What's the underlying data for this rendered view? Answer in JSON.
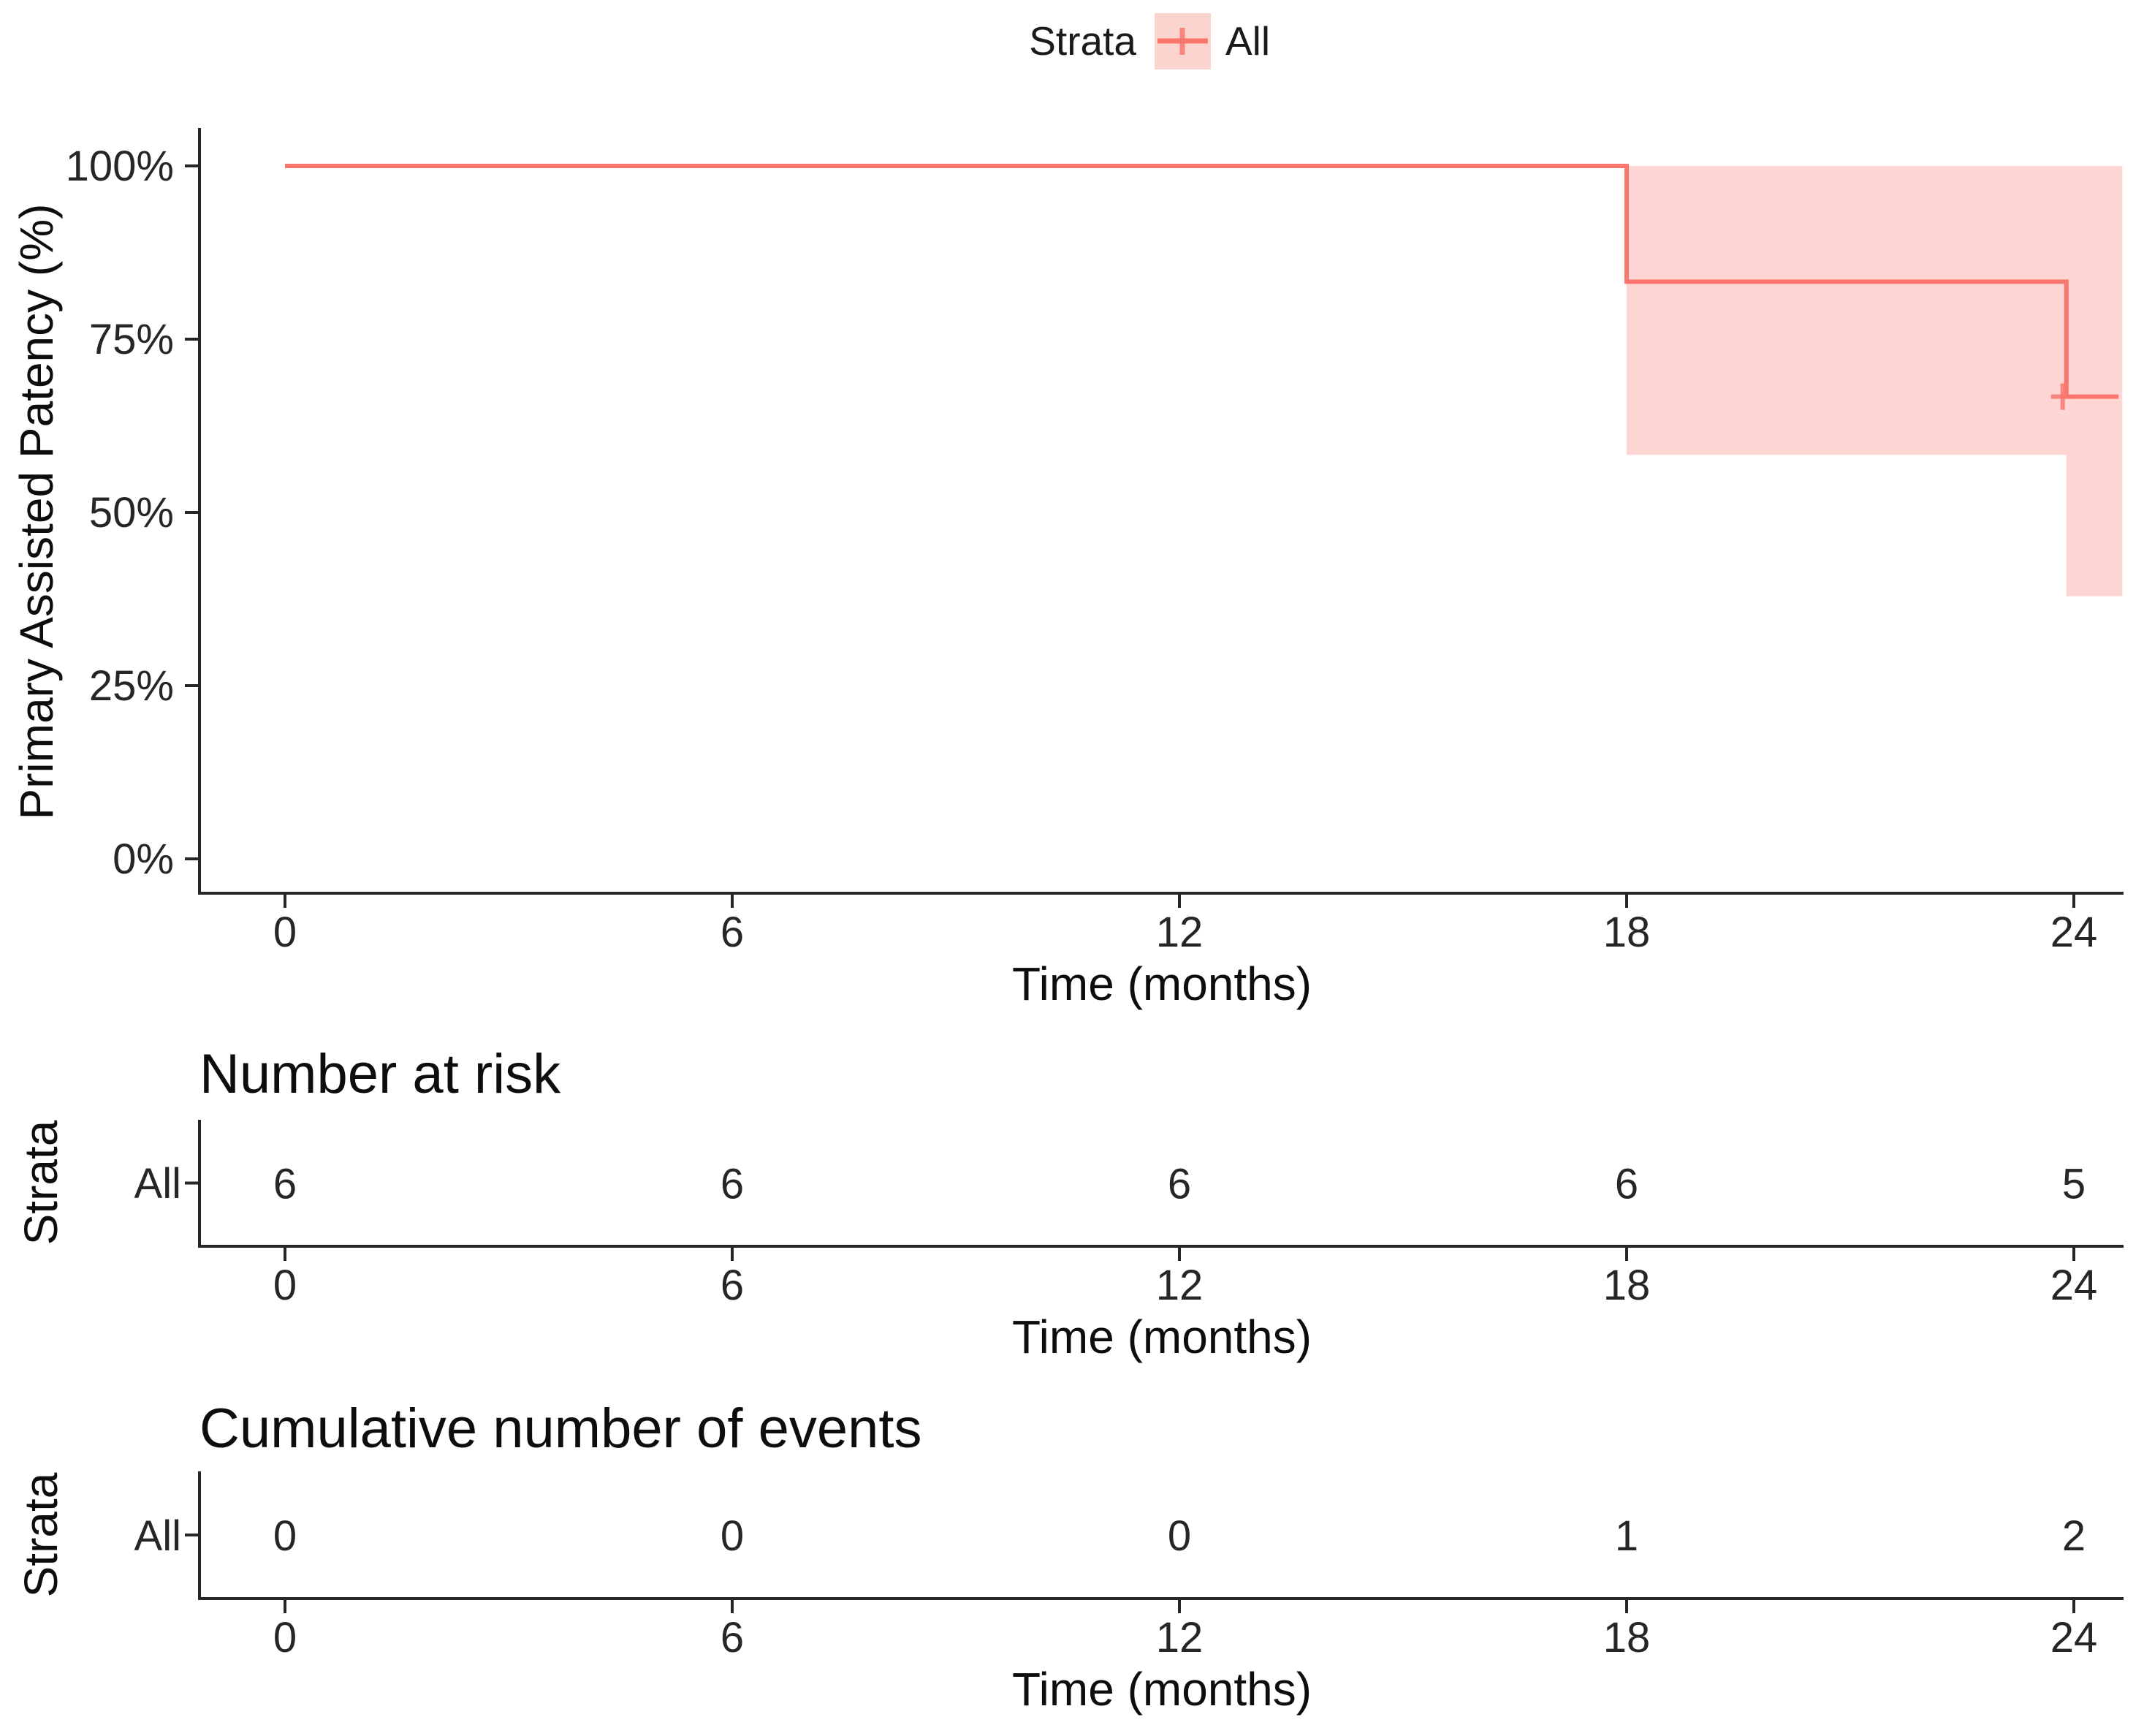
{
  "colors": {
    "accent": "#F8766D",
    "ribbon_fill": "#F8766D",
    "ribbon_opacity": 0.3,
    "legend_key_fill": "#FBD3CF",
    "axis_line": "#262626",
    "text": "#262626"
  },
  "legend": {
    "title": "Strata",
    "items": [
      {
        "label": "All",
        "color": "#F8766D"
      }
    ]
  },
  "chart_data": {
    "type": "line",
    "subtype": "kaplan-meier-step",
    "title": "",
    "xlabel": "Time (months)",
    "ylabel": "Primary Assisted Patency (%)",
    "x_ticks": [
      0,
      6,
      12,
      18,
      24
    ],
    "x_tick_labels": [
      "0",
      "6",
      "12",
      "18",
      "24"
    ],
    "y_ticks": [
      0,
      25,
      50,
      75,
      100
    ],
    "y_tick_labels": [
      "0%",
      "25%",
      "50%",
      "75%",
      "100%"
    ],
    "xlim": [
      -1.15,
      24.7
    ],
    "ylim": [
      -5,
      105
    ],
    "grid": false,
    "legend_position": "top",
    "series": [
      {
        "name": "All",
        "color": "#F8766D",
        "steps": [
          {
            "t": 0,
            "s": 100
          },
          {
            "t": 18,
            "s": 83.3
          },
          {
            "t": 23.9,
            "s": 66.7
          }
        ],
        "end_t": 24.6,
        "censor_marks": [
          {
            "t": 23.85,
            "s": 66.7
          }
        ],
        "ci": [
          {
            "t0": 18,
            "t1": 23.9,
            "lower": 58.3,
            "upper": 100
          },
          {
            "t0": 23.9,
            "t1": 24.65,
            "lower": 37.9,
            "upper": 100
          }
        ]
      }
    ],
    "risk_table": {
      "title": "Number at risk",
      "ylabel": "Strata",
      "row_label": "All",
      "times": [
        0,
        6,
        12,
        18,
        24
      ],
      "values": [
        "6",
        "6",
        "6",
        "6",
        "5"
      ],
      "xlabel": "Time (months)"
    },
    "events_table": {
      "title": "Cumulative number of events",
      "ylabel": "Strata",
      "row_label": "All",
      "times": [
        0,
        6,
        12,
        18,
        24
      ],
      "values": [
        "0",
        "0",
        "0",
        "1",
        "2"
      ],
      "xlabel": "Time (months)"
    }
  }
}
